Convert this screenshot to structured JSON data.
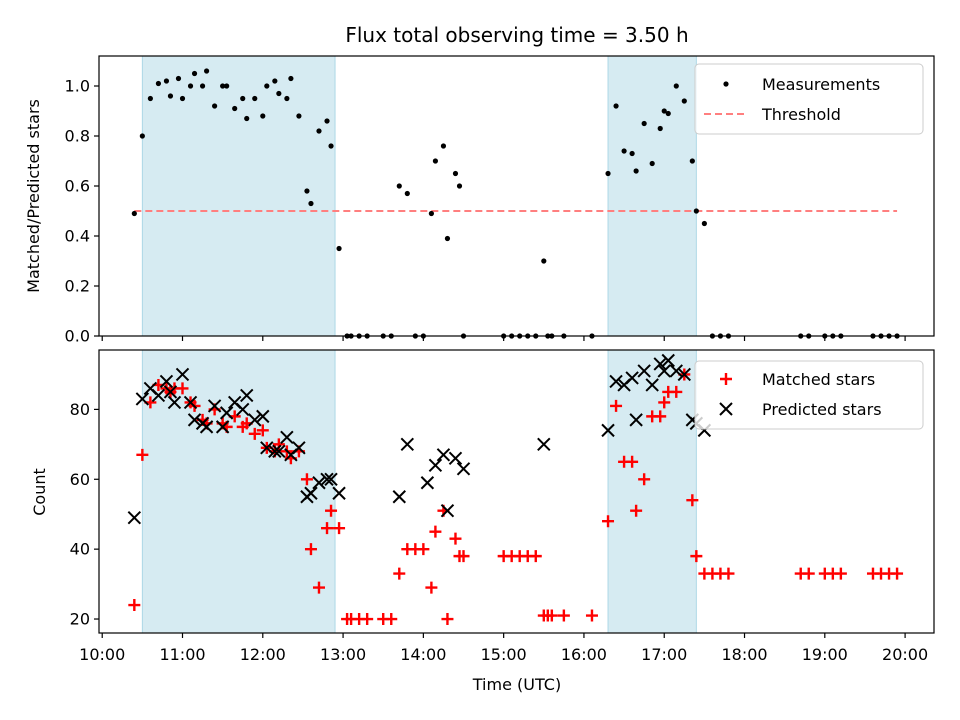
{
  "chart_data": [
    {
      "type": "scatter",
      "title": "Flux total observing time = 3.50 h",
      "xlabel": "",
      "ylabel": "Matched/Predicted stars",
      "x_unit": "hours (UTC)",
      "xlim": [
        9.96,
        20.36
      ],
      "ylim": [
        0.0,
        1.12
      ],
      "yticks": [
        0.0,
        0.2,
        0.4,
        0.6,
        0.8,
        1.0
      ],
      "ytick_labels": [
        "0.0",
        "0.2",
        "0.4",
        "0.6",
        "0.8",
        "1.0"
      ],
      "shaded_intervals": [
        [
          10.5,
          12.9
        ],
        [
          16.3,
          17.4
        ]
      ],
      "legend_position": "upper-right",
      "series": [
        {
          "name": "Measurements",
          "marker": "dot",
          "color": "#000000",
          "x": [
            10.4,
            10.5,
            10.6,
            10.7,
            10.8,
            10.85,
            10.95,
            11.0,
            11.1,
            11.15,
            11.25,
            11.3,
            11.4,
            11.5,
            11.55,
            11.65,
            11.75,
            11.8,
            11.9,
            12.0,
            12.05,
            12.15,
            12.2,
            12.3,
            12.35,
            12.45,
            12.55,
            12.6,
            12.7,
            12.8,
            12.85,
            12.95,
            13.05,
            13.1,
            13.2,
            13.3,
            13.5,
            13.6,
            13.7,
            13.8,
            13.9,
            14.0,
            14.1,
            14.15,
            14.25,
            14.3,
            14.4,
            14.45,
            14.5,
            15.0,
            15.1,
            15.2,
            15.3,
            15.4,
            15.5,
            15.55,
            15.6,
            15.75,
            16.1,
            16.3,
            16.4,
            16.5,
            16.6,
            16.65,
            16.75,
            16.85,
            16.95,
            17.0,
            17.05,
            17.15,
            17.25,
            17.35,
            17.4,
            17.5,
            17.6,
            17.7,
            17.8,
            18.7,
            18.8,
            19.0,
            19.1,
            19.2,
            19.6,
            19.7,
            19.8,
            19.9
          ],
          "y": [
            0.49,
            0.8,
            0.95,
            1.01,
            1.02,
            0.96,
            1.03,
            0.95,
            1.0,
            1.05,
            1.0,
            1.06,
            0.92,
            1.0,
            1.0,
            0.91,
            0.95,
            0.87,
            0.95,
            0.88,
            1.0,
            1.02,
            0.97,
            0.95,
            1.03,
            0.88,
            0.58,
            0.53,
            0.82,
            0.86,
            0.76,
            0.35,
            0.0,
            0.0,
            0.0,
            0.0,
            0.0,
            0.0,
            0.6,
            0.57,
            0.0,
            0.0,
            0.49,
            0.7,
            0.76,
            0.39,
            0.65,
            0.6,
            0.0,
            0.0,
            0.0,
            0.0,
            0.0,
            0.0,
            0.3,
            0.0,
            0.0,
            0.0,
            0.0,
            0.65,
            0.92,
            0.74,
            0.73,
            0.66,
            0.85,
            0.69,
            0.83,
            0.9,
            0.89,
            1.0,
            0.94,
            0.7,
            0.5,
            0.45,
            0.0,
            0.0,
            0.0,
            0.0,
            0.0,
            0.0,
            0.0,
            0.0,
            0.0,
            0.0,
            0.0,
            0.0
          ]
        },
        {
          "name": "Threshold",
          "marker": "dashed-line",
          "color": "#ff7f7f",
          "x": [
            10.4,
            19.9
          ],
          "y": [
            0.5,
            0.5
          ]
        }
      ]
    },
    {
      "type": "scatter",
      "title": "",
      "xlabel": "Time (UTC)",
      "ylabel": "Count",
      "x_unit": "hours (UTC)",
      "xlim": [
        9.96,
        20.36
      ],
      "ylim": [
        16,
        97
      ],
      "xticks": [
        10,
        11,
        12,
        13,
        14,
        15,
        16,
        17,
        18,
        19,
        20
      ],
      "xtick_labels": [
        "10:00",
        "11:00",
        "12:00",
        "13:00",
        "14:00",
        "15:00",
        "16:00",
        "17:00",
        "18:00",
        "19:00",
        "20:00"
      ],
      "yticks": [
        20,
        40,
        60,
        80
      ],
      "ytick_labels": [
        "20",
        "40",
        "60",
        "80"
      ],
      "shaded_intervals": [
        [
          10.5,
          12.9
        ],
        [
          16.3,
          17.4
        ]
      ],
      "legend_position": "upper-right",
      "series": [
        {
          "name": "Matched stars",
          "marker": "plus",
          "color": "#ff0000",
          "x": [
            10.4,
            10.5,
            10.6,
            10.7,
            10.8,
            10.85,
            10.9,
            11.0,
            11.1,
            11.15,
            11.25,
            11.3,
            11.4,
            11.5,
            11.55,
            11.65,
            11.75,
            11.8,
            11.9,
            12.0,
            12.05,
            12.15,
            12.2,
            12.3,
            12.35,
            12.45,
            12.55,
            12.6,
            12.7,
            12.8,
            12.85,
            12.95,
            13.05,
            13.1,
            13.2,
            13.3,
            13.5,
            13.6,
            13.7,
            13.8,
            13.9,
            14.0,
            14.1,
            14.15,
            14.25,
            14.3,
            14.4,
            14.45,
            14.5,
            15.0,
            15.1,
            15.2,
            15.3,
            15.4,
            15.5,
            15.55,
            15.6,
            15.75,
            16.1,
            16.3,
            16.4,
            16.5,
            16.6,
            16.65,
            16.75,
            16.85,
            16.95,
            17.0,
            17.05,
            17.15,
            17.25,
            17.35,
            17.4,
            17.5,
            17.6,
            17.7,
            17.8,
            18.7,
            18.8,
            19.0,
            19.1,
            19.2,
            19.6,
            19.7,
            19.8,
            19.9
          ],
          "y": [
            24,
            67,
            82,
            87,
            86,
            85,
            86,
            86,
            82,
            81,
            77,
            76,
            80,
            76,
            75,
            78,
            75,
            76,
            73,
            74,
            69,
            68,
            70,
            68,
            66,
            68,
            60,
            40,
            29,
            46,
            51,
            46,
            20,
            20,
            20,
            20,
            20,
            20,
            33,
            40,
            40,
            40,
            29,
            45,
            51,
            20,
            43,
            38,
            38,
            38,
            38,
            38,
            38,
            38,
            21,
            21,
            21,
            21,
            21,
            48,
            81,
            65,
            65,
            51,
            60,
            78,
            78,
            82,
            85,
            85,
            90,
            54,
            38,
            33,
            33,
            33,
            33,
            33,
            33,
            33,
            33,
            33,
            33,
            33,
            33,
            33
          ]
        },
        {
          "name": "Predicted stars",
          "marker": "x",
          "color": "#000000",
          "x": [
            10.4,
            10.5,
            10.6,
            10.7,
            10.8,
            10.85,
            10.9,
            11.0,
            11.1,
            11.15,
            11.25,
            11.3,
            11.4,
            11.5,
            11.55,
            11.65,
            11.75,
            11.8,
            11.9,
            12.0,
            12.05,
            12.15,
            12.2,
            12.3,
            12.35,
            12.45,
            12.55,
            12.6,
            12.7,
            12.8,
            12.85,
            12.95,
            13.7,
            13.8,
            14.05,
            14.15,
            14.25,
            14.3,
            14.4,
            14.5,
            15.5,
            16.3,
            16.4,
            16.5,
            16.6,
            16.65,
            16.75,
            16.85,
            16.95,
            17.0,
            17.05,
            17.15,
            17.25,
            17.35,
            17.4,
            17.5
          ],
          "y": [
            49,
            83,
            86,
            84,
            88,
            85,
            82,
            90,
            82,
            77,
            76,
            75,
            81,
            75,
            79,
            82,
            80,
            84,
            77,
            78,
            69,
            68,
            68,
            72,
            67,
            69,
            55,
            56,
            59,
            60,
            60,
            56,
            55,
            70,
            59,
            64,
            67,
            51,
            66,
            63,
            70,
            74,
            88,
            87,
            89,
            77,
            91,
            87,
            93,
            91,
            94,
            91,
            90,
            77,
            76,
            74
          ]
        }
      ]
    }
  ]
}
